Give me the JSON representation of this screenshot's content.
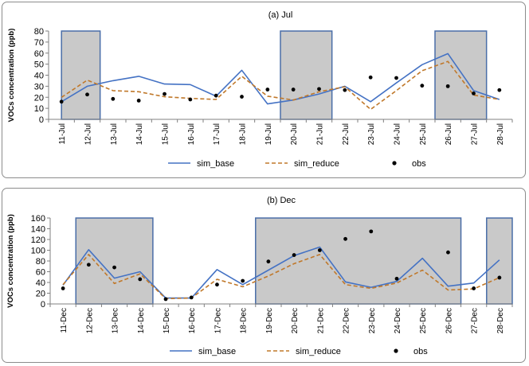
{
  "chart_data": [
    {
      "type": "line",
      "title": "(a) Jul",
      "ylabel": "VOCs concentration (ppb)",
      "xlabel": "",
      "ylim": [
        0,
        80
      ],
      "ytick_step": 10,
      "categories": [
        "11-Jul",
        "12-Jul",
        "13-Jul",
        "14-Jul",
        "15-Jul",
        "16-Jul",
        "17-Jul",
        "18-Jul",
        "19-Jul",
        "20-Jul",
        "21-Jul",
        "22-Jul",
        "23-Jul",
        "24-Jul",
        "25-Jul",
        "26-Jul",
        "27-Jul",
        "28-Jul"
      ],
      "shaded_ranges": [
        [
          0,
          1.5
        ],
        [
          8.5,
          10.5
        ],
        [
          14.5,
          16.5
        ]
      ],
      "grid": false,
      "legend_position": "bottom",
      "series": [
        {
          "name": "sim_base",
          "style": "solid",
          "color": "#4472C4",
          "values": [
            16,
            30,
            35,
            39,
            32,
            31.5,
            21,
            44.5,
            14,
            17.5,
            23,
            30,
            16,
            33,
            49.5,
            59.5,
            26,
            18
          ]
        },
        {
          "name": "sim_reduce",
          "style": "dashed",
          "color": "#C0782A",
          "values": [
            20,
            35.5,
            26,
            25,
            20.5,
            19,
            18,
            39,
            21,
            17.5,
            25,
            29.5,
            9,
            26,
            44,
            52.5,
            22,
            18
          ]
        },
        {
          "name": "obs",
          "style": "dots",
          "color": "#000000",
          "values": [
            16,
            22.5,
            18.5,
            17,
            23,
            18,
            21.5,
            20.5,
            27,
            27,
            27.5,
            26.5,
            38,
            37.5,
            30.5,
            30,
            23.5,
            26.5
          ]
        }
      ]
    },
    {
      "type": "line",
      "title": "(b) Dec",
      "ylabel": "VOCs concentration (ppb)",
      "xlabel": "",
      "ylim": [
        0,
        160
      ],
      "ytick_step": 20,
      "categories": [
        "11-Dec",
        "12-Dec",
        "13-Dec",
        "14-Dec",
        "15-Dec",
        "16-Dec",
        "17-Dec",
        "18-Dec",
        "19-Dec",
        "20-Dec",
        "21-Dec",
        "22-Dec",
        "23-Dec",
        "24-Dec",
        "25-Dec",
        "26-Dec",
        "27-Dec",
        "28-Dec"
      ],
      "shaded_ranges": [
        [
          0.5,
          3.5
        ],
        [
          7.5,
          15.5
        ],
        [
          16.5,
          17.5
        ]
      ],
      "grid": false,
      "legend_position": "bottom",
      "series": [
        {
          "name": "sim_base",
          "style": "solid",
          "color": "#4472C4",
          "values": [
            35,
            101,
            48,
            60,
            11,
            11,
            64,
            36,
            63,
            90,
            106,
            41,
            31,
            42,
            85,
            33,
            39,
            82
          ]
        },
        {
          "name": "sim_reduce",
          "style": "dashed",
          "color": "#C0782A",
          "values": [
            36,
            92,
            38,
            56,
            10,
            11,
            46,
            32,
            52,
            75,
            92,
            36,
            29,
            39,
            63,
            26,
            28,
            49
          ]
        },
        {
          "name": "obs",
          "style": "dots",
          "color": "#000000",
          "values": [
            29,
            73,
            68,
            46,
            9,
            12,
            36,
            43,
            79,
            91,
            100,
            121,
            135,
            47,
            null,
            96,
            29,
            49
          ]
        }
      ]
    }
  ]
}
